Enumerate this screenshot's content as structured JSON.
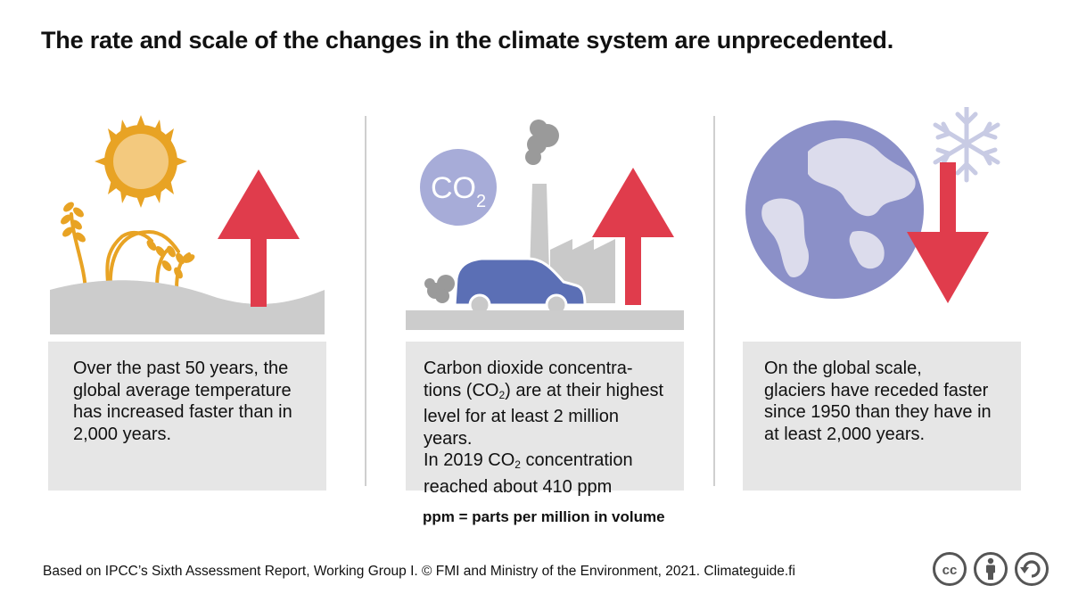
{
  "title": "The rate and scale of the changes in the climate system are unprecedented.",
  "panels": [
    {
      "lines": [
        "Over the past 50 years, the",
        "global average temperature",
        "has increased faster than in",
        "2,000 years."
      ]
    },
    {
      "co2_badge": "CO",
      "co2_badge_sub": "2",
      "line1": "Carbon dioxide concentra-",
      "line2_a": "tions (CO",
      "line2_sub": "2",
      "line2_b": ") are at their highest",
      "line3": "level for at least 2 million years.",
      "line4_a": "In 2019 CO",
      "line4_sub": "2",
      "line4_b": " concentration",
      "line5": "reached about 410 ppm"
    },
    {
      "lines": [
        "On the global scale,",
        "glaciers have receded faster",
        "since 1950 than they have in",
        "at least 2,000 years."
      ]
    }
  ],
  "footnote": "ppm = parts per million in volume",
  "source": "Based on IPCC’s Sixth Assessment Report, Working Group I. © FMI and Ministry of the Environment, 2021. Climateguide.fi",
  "license": {
    "cc": "cc"
  },
  "colors": {
    "arrow": "#e03c4c",
    "sun": "#e8a324",
    "sun_core": "#f3c97e",
    "globe": "#8b90c8",
    "land": "#dcdcec",
    "car": "#5b6fb5",
    "grey": "#c9c9c9",
    "co2": "#a7acd8"
  },
  "icons": [
    "sun-icon",
    "wheat-icon",
    "up-arrow-icon",
    "co2-icon",
    "factory-icon",
    "car-icon",
    "globe-icon",
    "snowflake-icon",
    "down-arrow-icon",
    "cc-icon",
    "attribution-icon",
    "share-alike-icon"
  ]
}
